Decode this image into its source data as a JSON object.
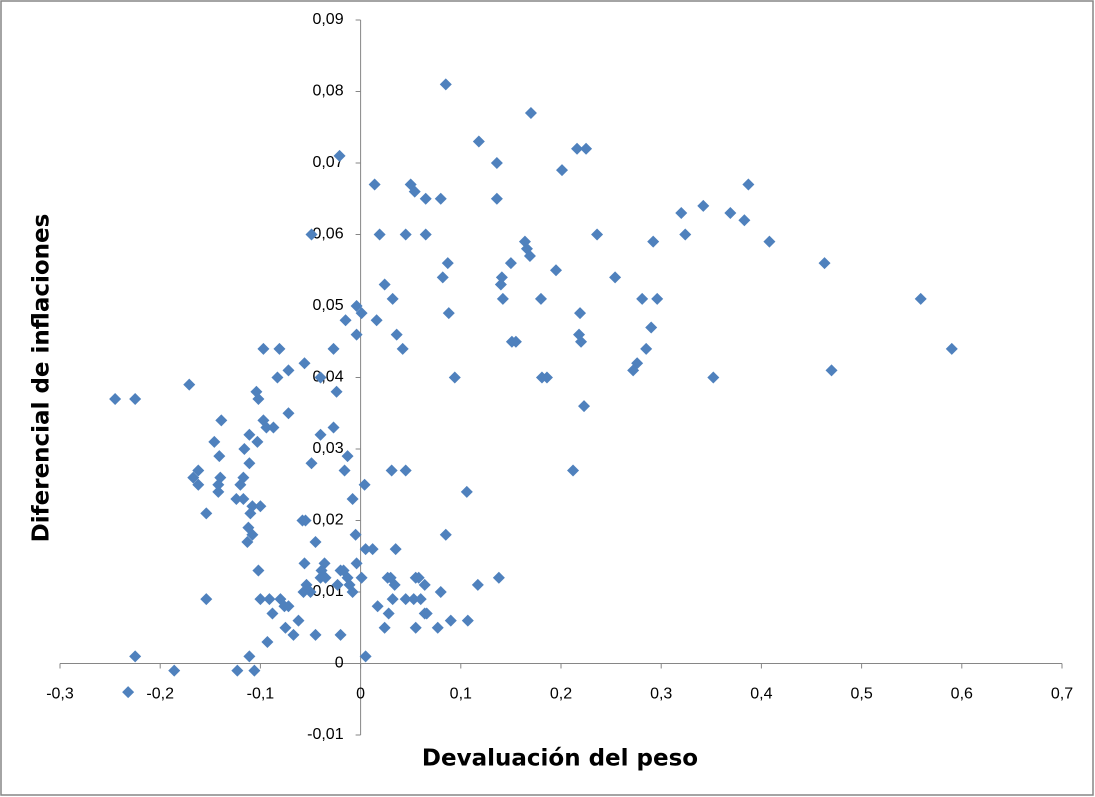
{
  "chart_data": {
    "type": "scatter",
    "xlabel": "Devaluación del peso",
    "ylabel": "Diferencial de inflaciones",
    "color": "#4f81bd",
    "xlim": [
      -0.3,
      0.7
    ],
    "ylim": [
      -0.01,
      0.09
    ],
    "xticks": [
      {
        "value": -0.3,
        "label": "-0,3"
      },
      {
        "value": -0.2,
        "label": "-0,2"
      },
      {
        "value": -0.1,
        "label": "-0,1"
      },
      0,
      {
        "value": 0.1,
        "label": "0,1"
      },
      {
        "value": 0.2,
        "label": "0,2"
      },
      {
        "value": 0.3,
        "label": "0,3"
      },
      {
        "value": 0.4,
        "label": "0,4"
      },
      {
        "value": 0.5,
        "label": "0,5"
      },
      {
        "value": 0.6,
        "label": "0,6"
      },
      {
        "value": 0.7,
        "label": "0,7"
      }
    ],
    "yticks": [
      {
        "value": -0.01,
        "label": "-0,01"
      },
      0,
      {
        "value": 0.01,
        "label": "0,01"
      },
      {
        "value": 0.02,
        "label": "0,02"
      },
      {
        "value": 0.03,
        "label": "0,03"
      },
      {
        "value": 0.04,
        "label": "0,04"
      },
      {
        "value": 0.05,
        "label": "0,05"
      },
      {
        "value": 0.06,
        "label": "0,06"
      },
      {
        "value": 0.07,
        "label": "0,07"
      },
      {
        "value": 0.08,
        "label": "0,08"
      },
      {
        "value": 0.09,
        "label": "0,09"
      }
    ],
    "x": [
      0.085,
      0.17,
      0.118,
      -0.021,
      0.136,
      0.216,
      0.225,
      0.201,
      0.014,
      0.05,
      0.054,
      0.065,
      0.08,
      0.136,
      0.387,
      0.32,
      0.342,
      0.369,
      0.383,
      0.324,
      0.408,
      0.292,
      0.236,
      -0.049,
      0.019,
      0.045,
      0.065,
      0.164,
      0.166,
      0.169,
      0.087,
      0.15,
      0.195,
      0.141,
      0.082,
      0.254,
      0.463,
      0.559,
      0.59,
      0.47,
      0.352,
      -0.004,
      0.024,
      0.032,
      0.001,
      -0.015,
      0.016,
      0.14,
      0.142,
      0.18,
      0.088,
      0.219,
      0.281,
      0.296,
      0.29,
      0.218,
      0.22,
      0.155,
      0.151,
      0.285,
      0.276,
      0.272,
      -0.004,
      0.036,
      0.042,
      -0.027,
      -0.097,
      -0.081,
      0.181,
      0.186,
      0.094,
      0.223,
      0.212,
      0.106,
      0.085,
      -0.245,
      -0.225,
      -0.171,
      -0.104,
      -0.072,
      -0.083,
      -0.056,
      -0.04,
      -0.024,
      -0.102,
      -0.072,
      -0.097,
      -0.094,
      -0.087,
      -0.139,
      -0.111,
      -0.04,
      -0.027,
      -0.103,
      -0.146,
      -0.116,
      -0.141,
      -0.013,
      -0.111,
      -0.049,
      -0.016,
      0.031,
      0.045,
      -0.162,
      -0.167,
      -0.14,
      -0.117,
      -0.12,
      -0.162,
      -0.142,
      -0.142,
      0.004,
      -0.008,
      -0.124,
      -0.117,
      -0.108,
      -0.1,
      -0.11,
      -0.154,
      -0.058,
      -0.055,
      -0.112,
      -0.108,
      -0.113,
      -0.045,
      -0.005,
      0.005,
      0.012,
      0.035,
      -0.036,
      -0.056,
      -0.039,
      -0.02,
      -0.017,
      -0.004,
      -0.102,
      -0.04,
      -0.035,
      -0.013,
      0.001,
      0.027,
      0.03,
      0.055,
      0.058,
      0.064,
      0.138,
      0.117,
      0.08,
      -0.054,
      -0.057,
      -0.05,
      -0.011,
      -0.008,
      -0.023,
      0.034,
      0.032,
      -0.091,
      -0.1,
      -0.154,
      -0.08,
      -0.076,
      -0.072,
      -0.088,
      -0.062,
      -0.075,
      -0.067,
      -0.045,
      -0.02,
      0.017,
      0.045,
      0.053,
      0.06,
      0.028,
      0.066,
      0.064,
      0.09,
      0.107,
      0.024,
      0.055,
      0.077,
      -0.093,
      -0.111,
      -0.225,
      0.005,
      -0.186,
      -0.123,
      -0.106,
      -0.232
    ],
    "values": [
      0.081,
      0.077,
      0.073,
      0.071,
      0.07,
      0.072,
      0.072,
      0.069,
      0.067,
      0.067,
      0.066,
      0.065,
      0.065,
      0.065,
      0.067,
      0.063,
      0.064,
      0.063,
      0.062,
      0.06,
      0.059,
      0.059,
      0.06,
      0.06,
      0.06,
      0.06,
      0.06,
      0.059,
      0.058,
      0.057,
      0.056,
      0.056,
      0.055,
      0.054,
      0.054,
      0.054,
      0.056,
      0.051,
      0.044,
      0.041,
      0.04,
      0.05,
      0.053,
      0.051,
      0.049,
      0.048,
      0.048,
      0.053,
      0.051,
      0.051,
      0.049,
      0.049,
      0.051,
      0.051,
      0.047,
      0.046,
      0.045,
      0.045,
      0.045,
      0.044,
      0.042,
      0.041,
      0.046,
      0.046,
      0.044,
      0.044,
      0.044,
      0.044,
      0.04,
      0.04,
      0.04,
      0.036,
      0.027,
      0.024,
      0.018,
      0.037,
      0.037,
      0.039,
      0.038,
      0.041,
      0.04,
      0.042,
      0.04,
      0.038,
      0.037,
      0.035,
      0.034,
      0.033,
      0.033,
      0.034,
      0.032,
      0.032,
      0.033,
      0.031,
      0.031,
      0.03,
      0.029,
      0.029,
      0.028,
      0.028,
      0.027,
      0.027,
      0.027,
      0.027,
      0.026,
      0.026,
      0.026,
      0.025,
      0.025,
      0.025,
      0.024,
      0.025,
      0.023,
      0.023,
      0.023,
      0.022,
      0.022,
      0.021,
      0.021,
      0.02,
      0.02,
      0.019,
      0.018,
      0.017,
      0.017,
      0.018,
      0.016,
      0.016,
      0.016,
      0.014,
      0.014,
      0.013,
      0.013,
      0.013,
      0.014,
      0.013,
      0.012,
      0.012,
      0.012,
      0.012,
      0.012,
      0.012,
      0.012,
      0.012,
      0.011,
      0.012,
      0.011,
      0.01,
      0.011,
      0.01,
      0.01,
      0.011,
      0.01,
      0.011,
      0.011,
      0.009,
      0.009,
      0.009,
      0.009,
      0.009,
      0.008,
      0.008,
      0.007,
      0.006,
      0.005,
      0.004,
      0.004,
      0.004,
      0.008,
      0.009,
      0.009,
      0.009,
      0.007,
      0.007,
      0.007,
      0.006,
      0.006,
      0.005,
      0.005,
      0.005,
      0.003,
      0.001,
      0.001,
      0.001,
      -0.001,
      -0.001,
      -0.001,
      -0.004
    ]
  }
}
